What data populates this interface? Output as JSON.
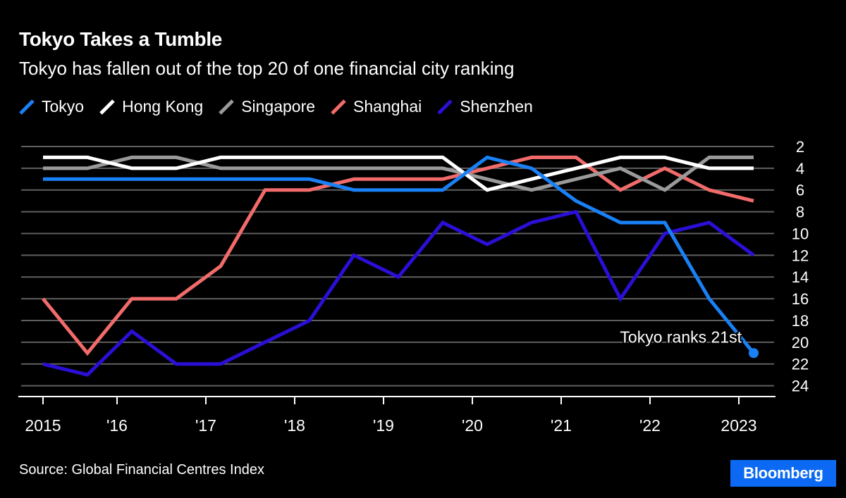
{
  "header": {
    "title": "Tokyo Takes a Tumble",
    "subtitle": "Tokyo has fallen out of the top 20 of one financial city ranking"
  },
  "footer": {
    "source": "Source: Global Financial Centres Index",
    "logo": "Bloomberg"
  },
  "colors": {
    "background": "#000000",
    "gridline": "#5f5f5f",
    "axis": "#ffffff",
    "logo_bg": "#0b69f3"
  },
  "chart_data": {
    "type": "line",
    "title": "Tokyo Takes a Tumble",
    "subtitle": "Tokyo has fallen out of the top 20 of one financial city ranking",
    "xlabel": "",
    "ylabel": "",
    "y_inverted": true,
    "ylim": [
      2,
      25
    ],
    "y_ticks": [
      2,
      4,
      6,
      8,
      10,
      12,
      14,
      16,
      18,
      20,
      22,
      24
    ],
    "y_axis_position": "right",
    "grid": "horizontal",
    "legend_position": "top-left",
    "x_ticks": [
      {
        "label": "2015",
        "x": "2015-03"
      },
      {
        "label": "'16",
        "x": "2016-01"
      },
      {
        "label": "'17",
        "x": "2017-01"
      },
      {
        "label": "'18",
        "x": "2018-01"
      },
      {
        "label": "'19",
        "x": "2019-01"
      },
      {
        "label": "'20",
        "x": "2020-01"
      },
      {
        "label": "'21",
        "x": "2021-01"
      },
      {
        "label": "'22",
        "x": "2022-01"
      },
      {
        "label": "2023",
        "x": "2023-01"
      }
    ],
    "x": [
      "2015-03",
      "2015-09",
      "2016-03",
      "2016-09",
      "2017-03",
      "2017-09",
      "2018-03",
      "2018-09",
      "2019-03",
      "2019-09",
      "2020-03",
      "2020-09",
      "2021-03",
      "2021-09",
      "2022-03",
      "2022-09",
      "2023-03"
    ],
    "series": [
      {
        "name": "Tokyo",
        "color": "#1a80f5",
        "values": [
          5,
          5,
          5,
          5,
          5,
          5,
          5,
          6,
          6,
          6,
          3,
          4,
          7,
          9,
          9,
          16,
          21
        ]
      },
      {
        "name": "Hong Kong",
        "color": "#ffffff",
        "values": [
          3,
          3,
          4,
          4,
          3,
          3,
          3,
          3,
          3,
          3,
          6,
          5,
          4,
          3,
          3,
          4,
          4
        ]
      },
      {
        "name": "Singapore",
        "color": "#9a9a9a",
        "values": [
          4,
          4,
          3,
          3,
          4,
          4,
          4,
          4,
          4,
          4,
          5,
          6,
          5,
          4,
          6,
          3,
          3
        ]
      },
      {
        "name": "Shanghai",
        "color": "#f26b6b",
        "values": [
          16,
          21,
          16,
          16,
          13,
          6,
          6,
          5,
          5,
          5,
          4,
          3,
          3,
          6,
          4,
          6,
          7
        ]
      },
      {
        "name": "Shenzhen",
        "color": "#2a0fd6",
        "values": [
          22,
          23,
          19,
          22,
          22,
          20,
          18,
          12,
          14,
          9,
          11,
          9,
          8,
          16,
          10,
          9,
          12
        ]
      }
    ],
    "draw_order": [
      "Shenzhen",
      "Shanghai",
      "Singapore",
      "Hong Kong",
      "Tokyo"
    ],
    "annotations": [
      {
        "text": "Tokyo ranks 21st",
        "series": "Tokyo",
        "x": "2023-03",
        "y": 21
      }
    ]
  }
}
